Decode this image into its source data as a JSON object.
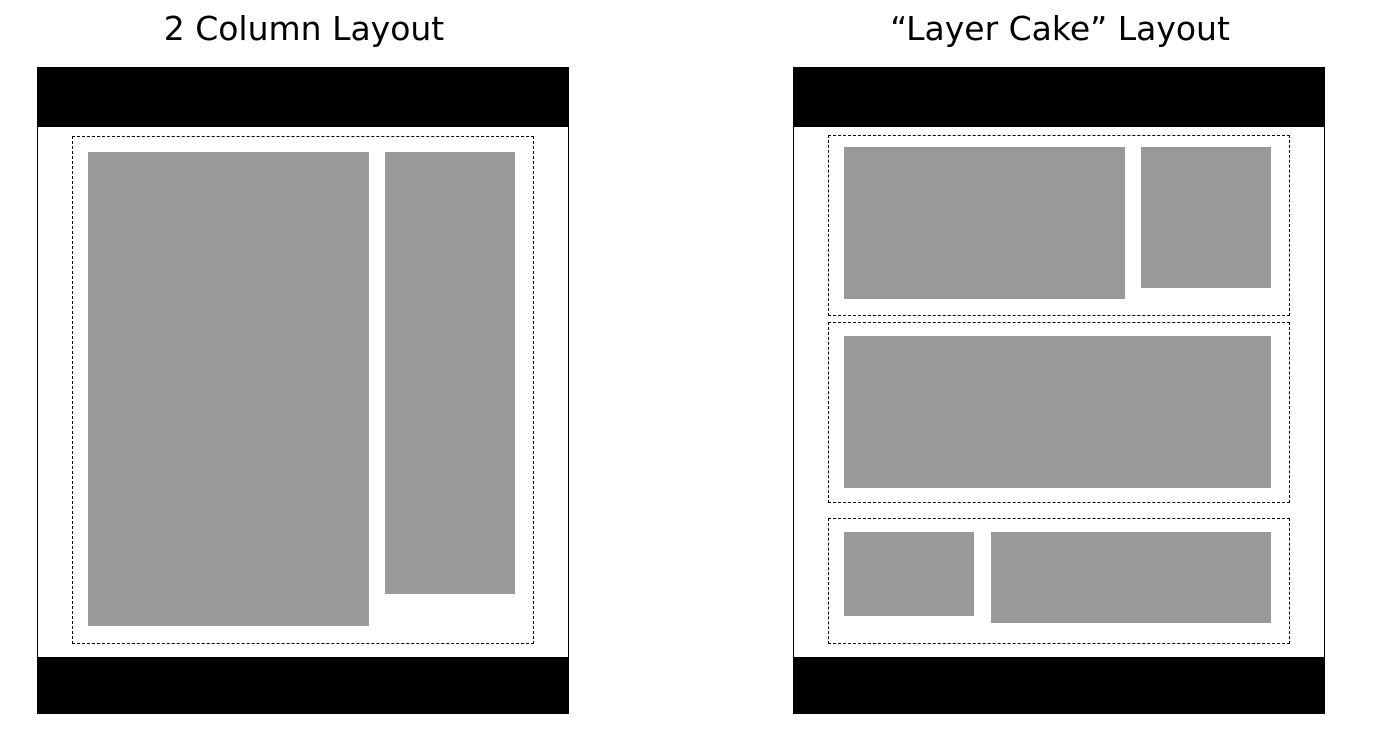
{
  "left_panel": {
    "title": "2 Column Layout"
  },
  "right_panel": {
    "title": "“Layer Cake” Layout"
  },
  "colors": {
    "header_footer": "#000000",
    "content_block": "#999999",
    "background": "#ffffff"
  }
}
